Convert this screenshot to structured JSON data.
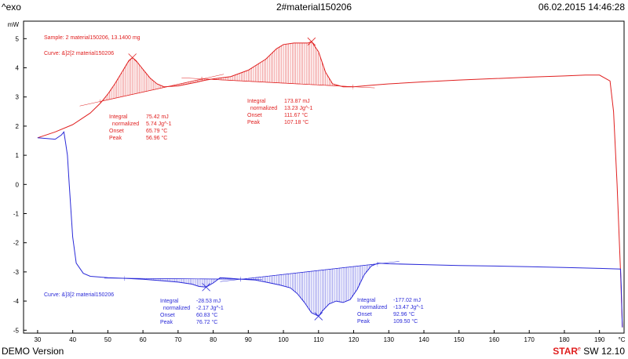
{
  "header": {
    "left": "^exo",
    "center": "2#material150206",
    "right": "06.02.2015 14:46:28"
  },
  "footer": {
    "left": "DEMO Version",
    "right_brand": "STAR",
    "right_mark": "e",
    "right_version": "SW 12.10"
  },
  "colors": {
    "heating": "#e02020",
    "cooling": "#2a2ad8",
    "axis": "#000000"
  },
  "chart_data": {
    "type": "line",
    "title": "2#material150206",
    "ylabel": "mW",
    "xlabel": "°C",
    "xlim": [
      26,
      197
    ],
    "ylim": [
      -5.1,
      5.6
    ],
    "x_ticks": [
      30,
      40,
      50,
      60,
      70,
      80,
      90,
      100,
      110,
      120,
      130,
      140,
      150,
      160,
      170,
      180,
      190
    ],
    "y_ticks": [
      5,
      4,
      3,
      2,
      1,
      0,
      -1,
      -2,
      -3,
      -4,
      -5
    ],
    "series": [
      {
        "name": "heating",
        "label": "Curve: &]2[2   material150206",
        "color": "#e02020",
        "points": [
          [
            30,
            1.6
          ],
          [
            35,
            1.8
          ],
          [
            40,
            2.05
          ],
          [
            45,
            2.45
          ],
          [
            48,
            2.8
          ],
          [
            50,
            3.1
          ],
          [
            52,
            3.45
          ],
          [
            54,
            3.85
          ],
          [
            56,
            4.25
          ],
          [
            57,
            4.35
          ],
          [
            58,
            4.25
          ],
          [
            60,
            3.95
          ],
          [
            62,
            3.65
          ],
          [
            64,
            3.45
          ],
          [
            66,
            3.35
          ],
          [
            70,
            3.38
          ],
          [
            75,
            3.5
          ],
          [
            78,
            3.58
          ],
          [
            80,
            3.62
          ],
          [
            85,
            3.7
          ],
          [
            90,
            3.92
          ],
          [
            95,
            4.3
          ],
          [
            98,
            4.65
          ],
          [
            100,
            4.8
          ],
          [
            103,
            4.85
          ],
          [
            105,
            4.85
          ],
          [
            107,
            4.85
          ],
          [
            108,
            4.9
          ],
          [
            110,
            4.55
          ],
          [
            112,
            3.85
          ],
          [
            114,
            3.45
          ],
          [
            117,
            3.35
          ],
          [
            120,
            3.35
          ],
          [
            125,
            3.4
          ],
          [
            130,
            3.45
          ],
          [
            140,
            3.52
          ],
          [
            150,
            3.58
          ],
          [
            160,
            3.63
          ],
          [
            170,
            3.68
          ],
          [
            180,
            3.72
          ],
          [
            186,
            3.75
          ],
          [
            190,
            3.75
          ],
          [
            193,
            3.55
          ],
          [
            194,
            2.5
          ],
          [
            195,
            0.0
          ],
          [
            196,
            -3.0
          ],
          [
            196.5,
            -4.9
          ]
        ]
      },
      {
        "name": "cooling",
        "label": "Curve: &]3[2   material150206",
        "color": "#2a2ad8",
        "points": [
          [
            196.5,
            -4.9
          ],
          [
            196.2,
            -3.5
          ],
          [
            196,
            -2.9
          ],
          [
            190,
            -2.88
          ],
          [
            180,
            -2.85
          ],
          [
            170,
            -2.82
          ],
          [
            160,
            -2.8
          ],
          [
            150,
            -2.78
          ],
          [
            140,
            -2.75
          ],
          [
            130,
            -2.72
          ],
          [
            127,
            -2.7
          ],
          [
            125,
            -2.8
          ],
          [
            123,
            -3.1
          ],
          [
            121,
            -3.6
          ],
          [
            119,
            -3.95
          ],
          [
            117,
            -4.05
          ],
          [
            115,
            -4.0
          ],
          [
            113,
            -4.1
          ],
          [
            111,
            -4.35
          ],
          [
            110,
            -4.52
          ],
          [
            108,
            -4.4
          ],
          [
            106,
            -4.05
          ],
          [
            104,
            -3.75
          ],
          [
            102,
            -3.55
          ],
          [
            99,
            -3.45
          ],
          [
            95,
            -3.35
          ],
          [
            92,
            -3.28
          ],
          [
            88,
            -3.25
          ],
          [
            85,
            -3.22
          ],
          [
            82,
            -3.2
          ],
          [
            80,
            -3.38
          ],
          [
            78,
            -3.52
          ],
          [
            76,
            -3.5
          ],
          [
            74,
            -3.42
          ],
          [
            70,
            -3.35
          ],
          [
            65,
            -3.3
          ],
          [
            60,
            -3.25
          ],
          [
            55,
            -3.22
          ],
          [
            50,
            -3.2
          ],
          [
            45,
            -3.15
          ],
          [
            43,
            -3.05
          ],
          [
            41,
            -2.7
          ],
          [
            40,
            -1.8
          ],
          [
            39,
            0.0
          ],
          [
            38.5,
            1.0
          ],
          [
            38,
            1.4
          ],
          [
            37.5,
            1.8
          ],
          [
            36.8,
            1.7
          ],
          [
            35,
            1.55
          ],
          [
            30,
            1.6
          ]
        ]
      }
    ],
    "fills": [
      {
        "series": "heating",
        "from": 48,
        "to": 77,
        "baseline": [
          [
            48,
            2.85
          ],
          [
            77,
            3.62
          ]
        ]
      },
      {
        "series": "heating",
        "from": 77,
        "to": 120,
        "baseline": [
          [
            77,
            3.62
          ],
          [
            120,
            3.35
          ]
        ]
      },
      {
        "series": "cooling",
        "from": 55,
        "to": 88,
        "baseline": [
          [
            55,
            -3.22
          ],
          [
            88,
            -3.25
          ]
        ]
      },
      {
        "series": "cooling",
        "from": 88,
        "to": 127,
        "baseline": [
          [
            88,
            -3.25
          ],
          [
            127,
            -2.72
          ]
        ]
      }
    ],
    "annotations": {
      "sample": "Sample: 2    material150206, 13.1400 mg",
      "heating_curve": "Curve: &]2[2    material150206",
      "cooling_curve": "Curve: &]3[2    material150206",
      "peaks": [
        {
          "rows": [
            [
              "Integral",
              "75.42 mJ"
            ],
            [
              "  normalized",
              "5.74 Jg^-1"
            ],
            [
              "Onset",
              "65.79 °C"
            ],
            [
              "Peak",
              "56.96 °C"
            ]
          ],
          "color": "heating"
        },
        {
          "rows": [
            [
              "Integral",
              "173.87 mJ"
            ],
            [
              "  normalized",
              "13.23 Jg^-1"
            ],
            [
              "Onset",
              "111.67 °C"
            ],
            [
              "Peak",
              "107.18 °C"
            ]
          ],
          "color": "heating"
        },
        {
          "rows": [
            [
              "Integral",
              "-28.53 mJ"
            ],
            [
              "  normalized",
              "-2.17 Jg^-1"
            ],
            [
              "Onset",
              "60.83 °C"
            ],
            [
              "Peak",
              "76.72 °C"
            ]
          ],
          "color": "cooling"
        },
        {
          "rows": [
            [
              "Integral",
              "-177.02 mJ"
            ],
            [
              "  normalized",
              "-13.47 Jg^-1"
            ],
            [
              "Onset",
              "92.96 °C"
            ],
            [
              "Peak",
              "109.50 °C"
            ]
          ],
          "color": "cooling"
        }
      ]
    }
  }
}
